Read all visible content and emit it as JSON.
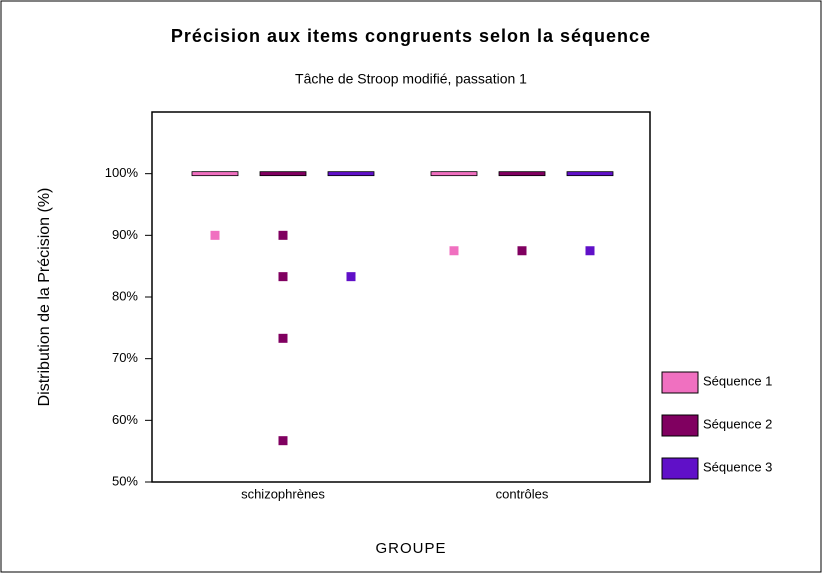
{
  "chart_data": {
    "type": "box",
    "title": "Précision aux items congruents selon la séquence",
    "subtitle": "Tâche de Stroop modifié, passation 1",
    "y_label": "Distribution de la Précision (%)",
    "x_label": "GROUPE",
    "categories": [
      "schizophrènes",
      "contrôles"
    ],
    "series": [
      {
        "name": "Séquence 1",
        "color": "#f070c0",
        "values": [
          100,
          100
        ],
        "outliers": [
          [
            90
          ],
          [
            87.5
          ]
        ]
      },
      {
        "name": "Séquence 2",
        "color": "#800060",
        "values": [
          100,
          100
        ],
        "outliers": [
          [
            90,
            83.3,
            73.3,
            56.7
          ],
          [
            87.5
          ]
        ]
      },
      {
        "name": "Séquence 3",
        "color": "#6010c8",
        "values": [
          100,
          100
        ],
        "outliers": [
          [
            83.3
          ],
          [
            87.5
          ]
        ]
      }
    ],
    "ylim": [
      50,
      110
    ],
    "yticks": [
      {
        "value": 50,
        "label": "50%"
      },
      {
        "value": 60,
        "label": "60%"
      },
      {
        "value": 70,
        "label": "70%"
      },
      {
        "value": 80,
        "label": "80%"
      },
      {
        "value": 90,
        "label": "90%"
      },
      {
        "value": 100,
        "label": "100%"
      }
    ],
    "legend": "right"
  }
}
